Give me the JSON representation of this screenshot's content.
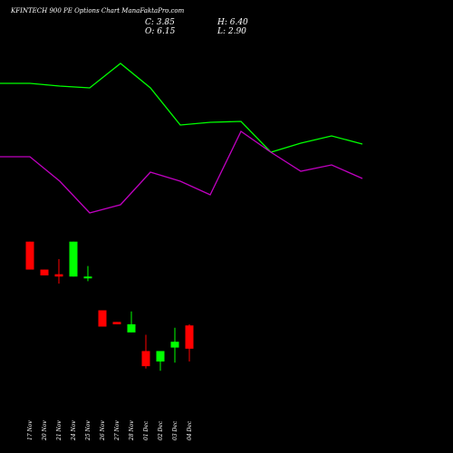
{
  "header": {
    "title": "KFINTECH 900  PE Options  Chart ManaFaktaPro.com",
    "close": "C: 3.85",
    "open": "O: 6.15",
    "high": "H: 6.40",
    "low": "L: 2.90"
  },
  "chart_data": {
    "type": "candlestick",
    "x": [
      "17 Nov",
      "20 Nov",
      "21 Nov",
      "24 Nov",
      "25 Nov",
      "26 Nov",
      "27 Nov",
      "28 Nov",
      "01 Dec",
      "02 Dec",
      "03 Dec",
      "04 Dec"
    ],
    "candles": [
      {
        "date": "17 Nov",
        "open": 19.4,
        "high": 19.4,
        "low": 17.0,
        "close": 17.0
      },
      {
        "date": "20 Nov",
        "open": 17.0,
        "high": 17.0,
        "low": 16.5,
        "close": 16.5
      },
      {
        "date": "21 Nov",
        "open": 16.6,
        "high": 17.9,
        "low": 15.8,
        "close": 16.4
      },
      {
        "date": "24 Nov",
        "open": 16.4,
        "high": 19.4,
        "low": 16.4,
        "close": 19.4
      },
      {
        "date": "25 Nov",
        "open": 16.3,
        "high": 17.3,
        "low": 16.0,
        "close": 16.4
      },
      {
        "date": "26 Nov",
        "open": 13.5,
        "high": 13.5,
        "low": 12.1,
        "close": 12.1
      },
      {
        "date": "27 Nov",
        "open": 12.5,
        "high": 12.5,
        "low": 12.3,
        "close": 12.3
      },
      {
        "date": "28 Nov",
        "open": 11.6,
        "high": 13.4,
        "low": 11.6,
        "close": 12.3
      },
      {
        "date": "01 Dec",
        "open": 10.0,
        "high": 11.4,
        "low": 8.5,
        "close": 8.7
      },
      {
        "date": "02 Dec",
        "open": 9.1,
        "high": 10.0,
        "low": 8.3,
        "close": 10.0
      },
      {
        "date": "03 Dec",
        "open": 10.3,
        "high": 12.0,
        "low": 9.0,
        "close": 10.8
      },
      {
        "date": "04 Dec",
        "open": 12.2,
        "high": 12.3,
        "low": 9.1,
        "close": 10.2
      }
    ],
    "lines": [
      {
        "color": "#00ff00",
        "values": [
          null,
          null,
          null,
          null,
          null,
          null,
          null,
          null,
          null,
          null,
          null,
          null
        ]
      },
      {
        "color": "#c000c0",
        "values": [
          null,
          null,
          null,
          null,
          null,
          null,
          null,
          null,
          null,
          null,
          null,
          null
        ]
      }
    ],
    "colors": {
      "up": "#00ff00",
      "down": "#ff0000",
      "background": "#000000",
      "text": "#ffffff"
    }
  }
}
